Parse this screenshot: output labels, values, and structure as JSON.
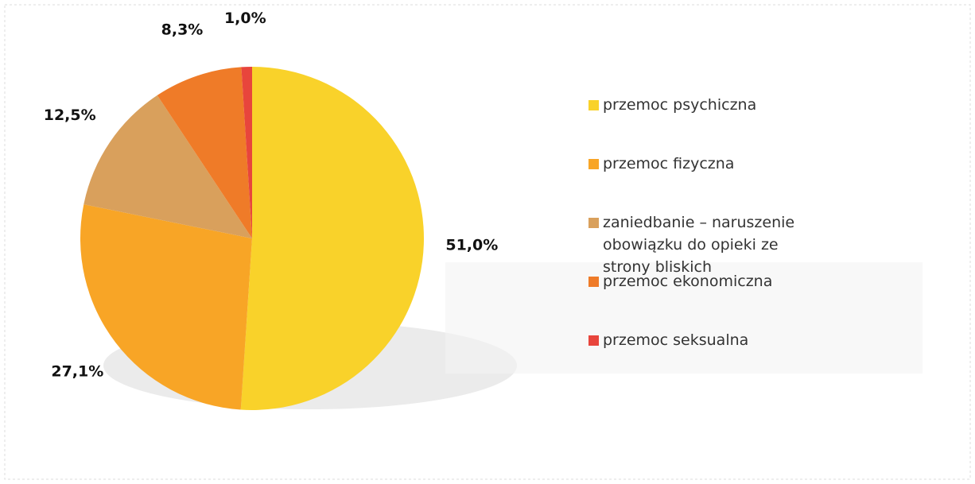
{
  "chart_data": {
    "type": "pie",
    "categories": [
      "przemoc psychiczna",
      "przemoc fizyczna",
      "zaniedbanie – naruszenie obowiązku do opieki ze strony bliskich",
      "przemoc ekonomiczna",
      "przemoc seksualna"
    ],
    "values": [
      51.0,
      27.1,
      12.5,
      8.3,
      1.0
    ],
    "value_labels": [
      "51,0%",
      "27,1%",
      "12,5%",
      "8,3%",
      "1,0%"
    ],
    "colors": [
      "#f9d22a",
      "#f8a526",
      "#d9a05c",
      "#ef7b28",
      "#e8453c"
    ],
    "legend": "right"
  }
}
